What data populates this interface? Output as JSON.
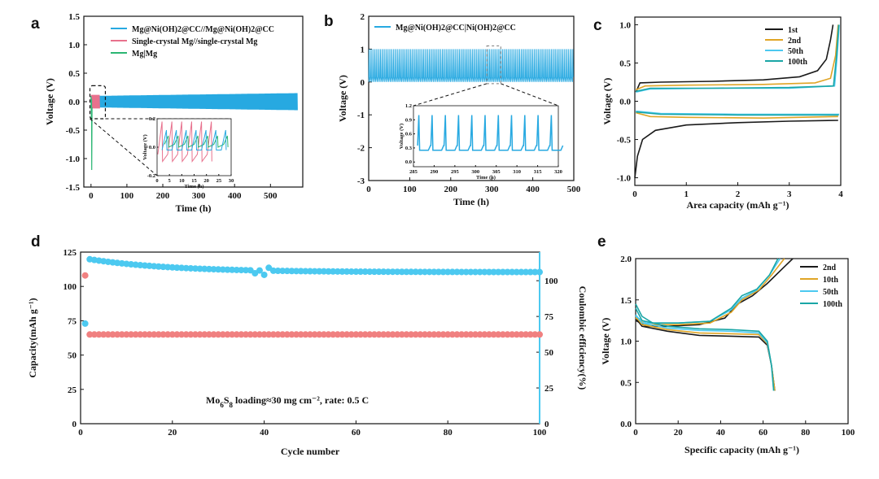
{
  "chart_data": [
    {
      "panel": "a",
      "type": "line",
      "xlabel": "Time (h)",
      "ylabel": "Voltage (V)",
      "xlim": [
        -20,
        590
      ],
      "ylim": [
        -1.5,
        1.5
      ],
      "xticks": [
        0,
        100,
        200,
        300,
        400,
        500
      ],
      "yticks": [
        -1.5,
        -1.0,
        -0.5,
        0.0,
        0.5,
        1.0,
        1.5
      ],
      "ytick_labels": [
        "-1.5",
        "-1.0",
        "-0.5",
        "0.0",
        "0.5",
        "1.0",
        "1.5"
      ],
      "series": [
        {
          "name": "Mg@Ni(OH)2@CC//Mg@Ni(OH)2@CC",
          "color": "#27a9e1",
          "time_range": [
            0,
            575
          ],
          "amplitude_start": 0.1,
          "amplitude_end": 0.15
        },
        {
          "name": "Single-crystal Mg//single-crystal Mg",
          "color": "#e8718d",
          "time_range": [
            0,
            25
          ],
          "amplitude": 0.12
        },
        {
          "name": "Mg|Mg",
          "color": "#2bb673",
          "time_range": [
            0,
            3
          ],
          "min": -1.2
        }
      ],
      "inset": {
        "xlabel": "Time (h)",
        "ylabel": "Voltage (V)",
        "xlim": [
          0,
          30
        ],
        "ylim": [
          -0.2,
          0.2
        ],
        "xticks": [
          0,
          5,
          10,
          15,
          20,
          25,
          30
        ],
        "yticks": [
          -0.2,
          0.0,
          0.2
        ],
        "ytick_labels": [
          "-0.2",
          "0.0",
          "0.2"
        ]
      }
    },
    {
      "panel": "b",
      "type": "line",
      "xlabel": "Time (h)",
      "ylabel": "Voltage (V)",
      "xlim": [
        0,
        500
      ],
      "ylim": [
        -3,
        2
      ],
      "xticks": [
        0,
        100,
        200,
        300,
        400,
        500
      ],
      "yticks": [
        -3,
        -2,
        -1,
        0,
        1,
        2
      ],
      "ytick_labels": [
        "-3",
        "-2",
        "-1",
        "0",
        "1",
        "2"
      ],
      "series": [
        {
          "name": "Mg@Ni(OH)2@CC|Ni(OH)2@CC",
          "color": "#27a9e1",
          "charge_peak": 1.0,
          "baseline": 0.15,
          "min": 0.0
        }
      ],
      "inset": {
        "xlabel": "Time (h)",
        "ylabel": "Voltage (V)",
        "xlim": [
          285,
          320
        ],
        "ylim": [
          -0.1,
          1.2
        ],
        "xticks": [
          285,
          290,
          295,
          300,
          305,
          310,
          315,
          320
        ],
        "yticks": [
          0.0,
          0.3,
          0.6,
          0.9,
          1.2
        ],
        "ytick_labels": [
          "0.0",
          "0.3",
          "0.6",
          "0.9",
          "1.2"
        ]
      }
    },
    {
      "panel": "c",
      "type": "line",
      "xlabel": "Area capacity (mAh g⁻¹)",
      "ylabel": "Voltage (V)",
      "xlim": [
        0,
        4
      ],
      "ylim": [
        -1.1,
        1.1
      ],
      "xticks": [
        0,
        1,
        2,
        3,
        4
      ],
      "yticks": [
        -1.0,
        -0.5,
        0.0,
        0.5,
        1.0
      ],
      "ytick_labels": [
        "-1.0",
        "-0.5",
        "0.0",
        "0.5",
        "1.0"
      ],
      "series": [
        {
          "name": "1st",
          "color": "#1a1a1a",
          "charge": [
            [
              0.02,
              0.12
            ],
            [
              0.1,
              0.24
            ],
            [
              0.5,
              0.25
            ],
            [
              1.5,
              0.26
            ],
            [
              2.5,
              0.28
            ],
            [
              3.2,
              0.32
            ],
            [
              3.55,
              0.4
            ],
            [
              3.72,
              0.55
            ],
            [
              3.8,
              0.8
            ],
            [
              3.85,
              1.0
            ]
          ],
          "discharge": [
            [
              0.0,
              -1.0
            ],
            [
              0.05,
              -0.72
            ],
            [
              0.15,
              -0.5
            ],
            [
              0.4,
              -0.38
            ],
            [
              1.0,
              -0.31
            ],
            [
              2.0,
              -0.28
            ],
            [
              3.0,
              -0.26
            ],
            [
              3.95,
              -0.25
            ]
          ]
        },
        {
          "name": "2nd",
          "color": "#e0a526",
          "charge": [
            [
              0.02,
              0.15
            ],
            [
              0.2,
              0.2
            ],
            [
              1.0,
              0.21
            ],
            [
              2.5,
              0.22
            ],
            [
              3.5,
              0.24
            ],
            [
              3.8,
              0.3
            ],
            [
              3.9,
              0.6
            ],
            [
              3.95,
              1.0
            ]
          ],
          "discharge": [
            [
              0.02,
              -0.15
            ],
            [
              0.3,
              -0.2
            ],
            [
              1.0,
              -0.21
            ],
            [
              2.5,
              -0.22
            ],
            [
              3.95,
              -0.2
            ]
          ]
        },
        {
          "name": "50th",
          "color": "#4cc9f0",
          "charge": [
            [
              0.02,
              0.12
            ],
            [
              0.3,
              0.16
            ],
            [
              1.5,
              0.17
            ],
            [
              3.0,
              0.17
            ],
            [
              3.88,
              0.2
            ],
            [
              3.93,
              0.6
            ],
            [
              3.97,
              1.0
            ]
          ],
          "discharge": [
            [
              0.02,
              -0.13
            ],
            [
              0.5,
              -0.16
            ],
            [
              2.0,
              -0.17
            ],
            [
              3.97,
              -0.17
            ]
          ]
        },
        {
          "name": "100th",
          "color": "#1aa6a6",
          "charge": [
            [
              0.02,
              0.13
            ],
            [
              0.3,
              0.17
            ],
            [
              1.5,
              0.17
            ],
            [
              3.0,
              0.18
            ],
            [
              3.86,
              0.2
            ],
            [
              3.92,
              0.6
            ],
            [
              3.96,
              1.0
            ]
          ],
          "discharge": [
            [
              0.02,
              -0.14
            ],
            [
              0.5,
              -0.17
            ],
            [
              2.0,
              -0.18
            ],
            [
              3.96,
              -0.18
            ]
          ]
        }
      ]
    },
    {
      "panel": "d",
      "type": "scatter",
      "xlabel": "Cycle number",
      "ylabel": "Capacity(mAh g⁻¹)",
      "y2label": "Coulombic efficiency(%)",
      "xlim": [
        0,
        100
      ],
      "ylim": [
        0,
        125
      ],
      "y2lim": [
        0,
        120
      ],
      "xticks": [
        0,
        20,
        40,
        60,
        80,
        100
      ],
      "yticks": [
        0,
        25,
        50,
        75,
        100,
        125
      ],
      "y2ticks": [
        0,
        25,
        50,
        75,
        100
      ],
      "annotation_main": "Mo",
      "annotation_sub1": "6",
      "annotation_mid": "S",
      "annotation_sub2": "8",
      "annotation_tail": " loading≈30 mg cm⁻², rate: 0.5 C",
      "series": [
        {
          "name": "Capacity",
          "color": "#f08080",
          "axis": "left",
          "first": [
            1,
            108
          ],
          "plateau": 65
        },
        {
          "name": "Coulombic efficiency",
          "color": "#4cc9f0",
          "axis": "right",
          "first": [
            1,
            70
          ],
          "start": 115,
          "end": 106
        }
      ]
    },
    {
      "panel": "e",
      "type": "line",
      "xlabel": "Specific capacity (mAh g⁻¹)",
      "ylabel": "Voltage (V)",
      "xlim": [
        0,
        100
      ],
      "ylim": [
        0,
        2.0
      ],
      "xticks": [
        0,
        20,
        40,
        60,
        80,
        100
      ],
      "yticks": [
        0.0,
        0.5,
        1.0,
        1.5,
        2.0
      ],
      "ytick_labels": [
        "0.0",
        "0.5",
        "1.0",
        "1.5",
        "2.0"
      ],
      "series": [
        {
          "name": "2nd",
          "color": "#1a1a1a",
          "charge": [
            [
              0,
              1.25
            ],
            [
              5,
              1.18
            ],
            [
              15,
              1.18
            ],
            [
              30,
              1.2
            ],
            [
              42,
              1.28
            ],
            [
              48,
              1.45
            ],
            [
              55,
              1.55
            ],
            [
              62,
              1.7
            ],
            [
              70,
              1.9
            ],
            [
              74,
              2.0
            ]
          ],
          "discharge": [
            [
              0,
              1.28
            ],
            [
              3,
              1.18
            ],
            [
              15,
              1.12
            ],
            [
              30,
              1.07
            ],
            [
              45,
              1.06
            ],
            [
              58,
              1.05
            ],
            [
              62,
              0.95
            ],
            [
              64,
              0.7
            ],
            [
              65.5,
              0.4
            ]
          ]
        },
        {
          "name": "10th",
          "color": "#e0a526",
          "charge": [
            [
              0,
              1.28
            ],
            [
              5,
              1.2
            ],
            [
              20,
              1.2
            ],
            [
              35,
              1.22
            ],
            [
              45,
              1.35
            ],
            [
              50,
              1.5
            ],
            [
              58,
              1.62
            ],
            [
              64,
              1.8
            ],
            [
              70,
              2.0
            ]
          ],
          "discharge": [
            [
              0,
              1.3
            ],
            [
              3,
              1.2
            ],
            [
              15,
              1.14
            ],
            [
              30,
              1.1
            ],
            [
              45,
              1.09
            ],
            [
              58,
              1.08
            ],
            [
              62,
              0.97
            ],
            [
              64,
              0.7
            ],
            [
              65.5,
              0.4
            ]
          ]
        },
        {
          "name": "50th",
          "color": "#4cc9f0",
          "charge": [
            [
              0,
              1.3
            ],
            [
              5,
              1.22
            ],
            [
              20,
              1.22
            ],
            [
              35,
              1.24
            ],
            [
              45,
              1.38
            ],
            [
              50,
              1.52
            ],
            [
              57,
              1.62
            ],
            [
              63,
              1.8
            ],
            [
              68,
              2.0
            ]
          ],
          "discharge": [
            [
              0,
              1.32
            ],
            [
              3,
              1.22
            ],
            [
              15,
              1.16
            ],
            [
              30,
              1.13
            ],
            [
              45,
              1.12
            ],
            [
              58,
              1.1
            ],
            [
              62,
              0.98
            ],
            [
              64,
              0.7
            ],
            [
              65,
              0.4
            ]
          ]
        },
        {
          "name": "100th",
          "color": "#1aa6a6",
          "charge": [
            [
              0,
              1.45
            ],
            [
              3,
              1.3
            ],
            [
              8,
              1.22
            ],
            [
              20,
              1.22
            ],
            [
              35,
              1.24
            ],
            [
              45,
              1.4
            ],
            [
              50,
              1.55
            ],
            [
              57,
              1.63
            ],
            [
              63,
              1.8
            ],
            [
              67,
              2.0
            ]
          ],
          "discharge": [
            [
              0,
              1.4
            ],
            [
              3,
              1.25
            ],
            [
              15,
              1.18
            ],
            [
              30,
              1.15
            ],
            [
              45,
              1.14
            ],
            [
              58,
              1.12
            ],
            [
              62,
              1.0
            ],
            [
              64,
              0.7
            ],
            [
              65,
              0.4
            ]
          ]
        }
      ]
    }
  ]
}
